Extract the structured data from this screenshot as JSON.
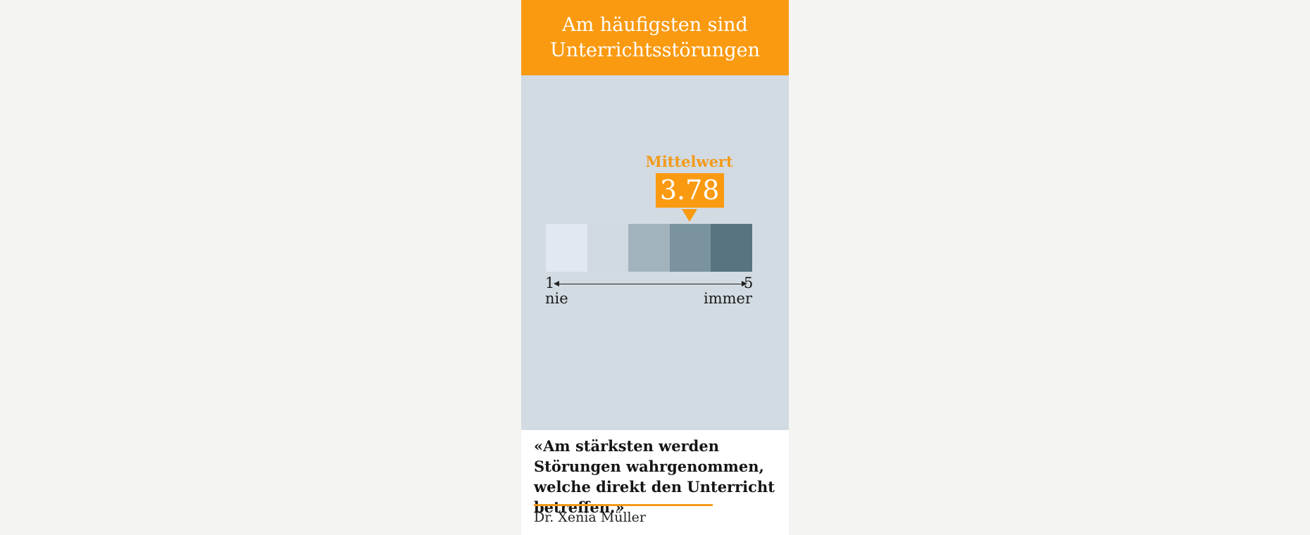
{
  "header": {
    "title": "Am häufigsten sind\nUnterrichtsstörungen"
  },
  "scale": {
    "mean_label": "Mittelwert",
    "mean_value": "3.78",
    "mean_numeric": 3.78,
    "min_value": "1",
    "max_value": "5",
    "min_label": "nie",
    "max_label": "immer",
    "colors": [
      "#e2e8ef",
      "#d0d9e1",
      "#a2b3be",
      "#7a939f",
      "#587480"
    ]
  },
  "quote": {
    "text": "«Am stärksten werden Störungen wahrgenommen, welche direkt den Unterricht betreffen.»",
    "author": "Dr. Xenia Müller"
  },
  "colors": {
    "accent": "#fa9a11",
    "panel": "#d2dbe2",
    "background": "#f4f4f2"
  }
}
